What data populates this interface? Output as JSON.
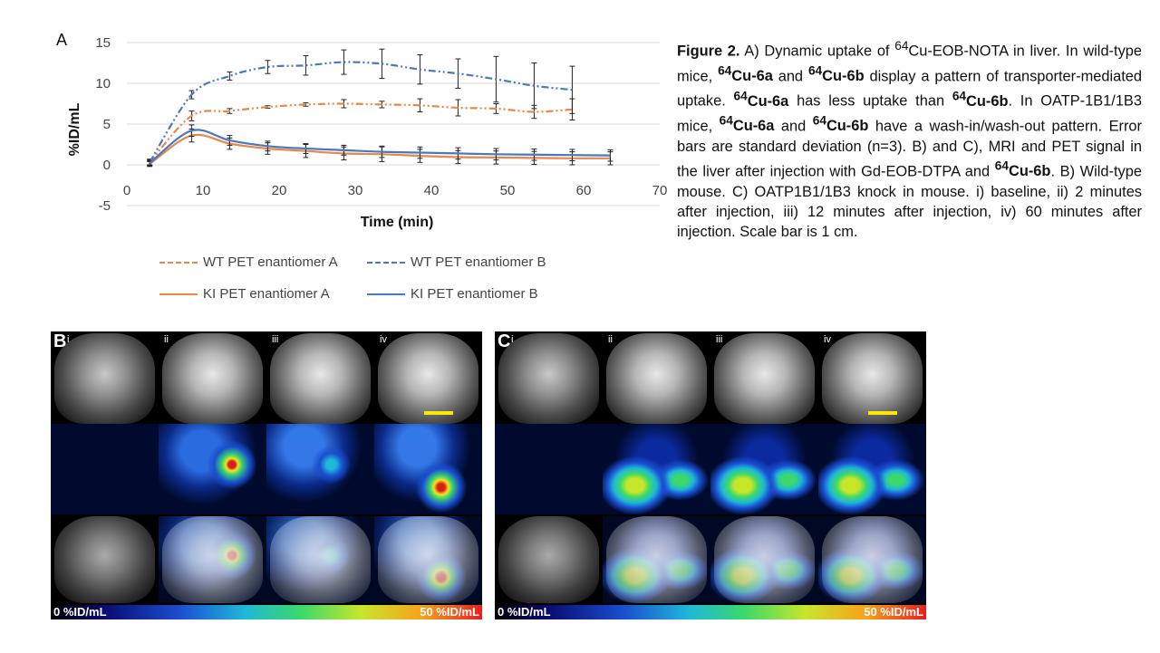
{
  "panel_a": {
    "letter": "A",
    "chart_data": {
      "type": "line",
      "title": "",
      "xlabel": "Time (min)",
      "ylabel": "%ID/mL",
      "xlim": [
        0,
        70
      ],
      "ylim": [
        -5,
        15
      ],
      "x_ticks": [
        "0",
        "10",
        "20",
        "30",
        "40",
        "50",
        "60",
        "70"
      ],
      "y_ticks": [
        "-5",
        "0",
        "5",
        "10",
        "15"
      ],
      "grid": "horizontal",
      "legend_position": "bottom",
      "series": [
        {
          "name": "WT PET enantiomer A",
          "color": "#e8874a",
          "dash": "dashdotdot",
          "x": [
            3,
            8.5,
            13.5,
            18.5,
            23.5,
            28.5,
            33.5,
            38.5,
            43.5,
            48.5,
            53.5,
            58.5
          ],
          "y": [
            0.3,
            6.0,
            6.6,
            7.1,
            7.4,
            7.5,
            7.4,
            7.3,
            7.0,
            6.9,
            6.5,
            6.8
          ],
          "err": [
            0.3,
            0.6,
            0.3,
            0.15,
            0.2,
            0.5,
            0.4,
            0.8,
            1.0,
            0.6,
            0.8,
            1.3
          ]
        },
        {
          "name": "WT PET enantiomer B",
          "color": "#4a78c0",
          "dash": "dashdotdot",
          "x": [
            3,
            8.5,
            13.5,
            18.5,
            23.5,
            28.5,
            33.5,
            38.5,
            43.5,
            48.5,
            53.5,
            58.5
          ],
          "y": [
            0.3,
            8.6,
            10.9,
            12.0,
            12.2,
            12.6,
            12.4,
            11.7,
            11.2,
            10.5,
            9.7,
            9.2
          ],
          "err": [
            0.4,
            0.5,
            0.5,
            0.8,
            1.2,
            1.5,
            1.8,
            1.8,
            1.8,
            2.8,
            2.8,
            2.9
          ]
        },
        {
          "name": "KI PET enantiomer A",
          "color": "#e8874a",
          "dash": "solid",
          "x": [
            3,
            8.5,
            13.5,
            18.5,
            23.5,
            28.5,
            33.5,
            38.5,
            43.5,
            48.5,
            53.5,
            58.5,
            63.5
          ],
          "y": [
            0.1,
            3.6,
            2.6,
            2.0,
            1.7,
            1.4,
            1.3,
            1.1,
            0.95,
            0.9,
            0.85,
            0.8,
            0.8
          ],
          "err": [
            0.3,
            0.8,
            0.7,
            0.7,
            0.8,
            0.8,
            0.9,
            0.8,
            0.8,
            0.8,
            0.8,
            0.8,
            0.8
          ]
        },
        {
          "name": "KI PET enantiomer B",
          "color": "#4a78c0",
          "dash": "solid",
          "x": [
            3,
            8.5,
            13.5,
            18.5,
            23.5,
            28.5,
            33.5,
            38.5,
            43.5,
            48.5,
            53.5,
            58.5,
            63.5
          ],
          "y": [
            0.2,
            4.2,
            3.0,
            2.3,
            2.0,
            1.8,
            1.6,
            1.5,
            1.4,
            1.3,
            1.25,
            1.2,
            1.15
          ],
          "err": [
            0.3,
            0.7,
            0.6,
            0.6,
            0.6,
            0.6,
            0.7,
            0.7,
            0.7,
            0.7,
            0.7,
            0.7,
            0.7
          ]
        }
      ]
    }
  },
  "caption": {
    "figure_label": "Figure 2.",
    "t1": " A) Dynamic uptake of ",
    "sup64": "64",
    "t2": "Cu-EOB-NOTA in liver. In wild-type mice, ",
    "cu6a": "Cu-6a",
    "cu6b": "Cu-6b",
    "t3": " and ",
    "t4": " display a pattern of transporter-mediated uptake. ",
    "t5": " has less uptake than ",
    "t6": ". In OATP-1B1/1B3 mice, ",
    "t7": " and ",
    "t8": " have a wash-in/wash-out pattern. Error bars are standard deviation (n=3). B) and C), MRI and PET signal in the liver after injection with Gd-EOB-DTPA and ",
    "t9": ". B) Wild-type mouse. C) OATP1B1/1B3 knock in mouse. i) baseline, ii) 2 minutes after injection, iii) 12 minutes after injection, iv) 60 minutes after injection. Scale bar is 1 cm."
  },
  "panel_b": {
    "letter": "B",
    "numerals": [
      "i",
      "ii",
      "iii",
      "iv"
    ],
    "cb_low": "0 %ID/mL",
    "cb_high": "50 %ID/mL"
  },
  "panel_c": {
    "letter": "C",
    "numerals": [
      "i",
      "ii",
      "iii",
      "iv"
    ],
    "cb_low": "0 %ID/mL",
    "cb_high": "50 %ID/mL"
  },
  "colors": {
    "orange": "#e8874a",
    "blue": "#4a78c0",
    "scale_bar": "#ffe600"
  }
}
